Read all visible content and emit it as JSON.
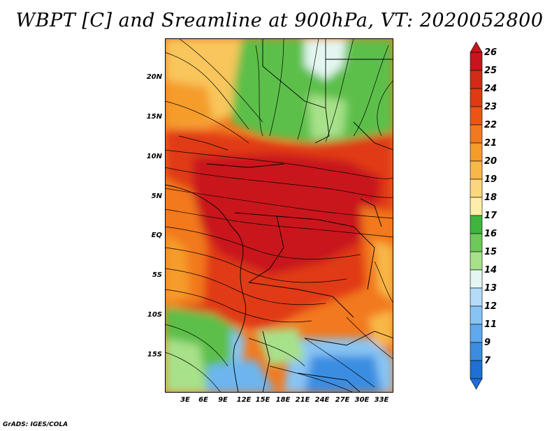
{
  "title": "WBPT [C] and Sreamline at 900hPa, VT: 2020052800",
  "footer": "GrADS: IGES/COLA",
  "y_axis": {
    "labels": [
      "20N",
      "15N",
      "10N",
      "5N",
      "EQ",
      "5S",
      "10S",
      "15S"
    ]
  },
  "x_axis": {
    "labels": [
      "3E",
      "6E",
      "9E",
      "12E",
      "15E",
      "18E",
      "21E",
      "24E",
      "27E",
      "30E",
      "33E"
    ]
  },
  "colorbar": {
    "labels": [
      "26",
      "25",
      "24",
      "23",
      "22",
      "21",
      "20",
      "19",
      "18",
      "17",
      "16",
      "15",
      "14",
      "13",
      "12",
      "11",
      "9",
      "7"
    ],
    "colors": [
      "#c8141e",
      "#d52a17",
      "#e03a12",
      "#ea5516",
      "#f2791f",
      "#f59c2a",
      "#f8b846",
      "#fbd67d",
      "#fdeea9",
      "#3fb53d",
      "#6cc95a",
      "#a7e18a",
      "#e4f6f1",
      "#b4dcf8",
      "#88c4f3",
      "#5fa9ec",
      "#3b8de2",
      "#1f6fd4"
    ]
  },
  "legend_colors": {
    "land_outline": "#000000",
    "streamline": "#000000"
  }
}
